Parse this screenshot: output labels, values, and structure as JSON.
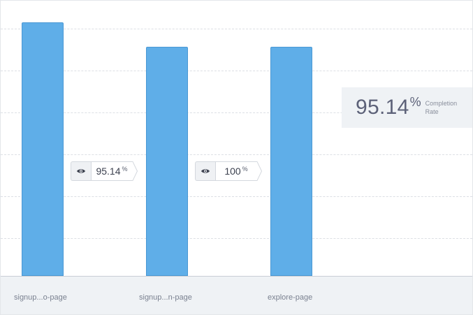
{
  "chart_data": {
    "type": "bar",
    "categories": [
      "signup...o-page",
      "signup...n-page",
      "explore-page"
    ],
    "values": [
      100,
      95.14,
      95.14
    ],
    "ylim": [
      0,
      100
    ],
    "grid": true,
    "conversion_rates": [
      {
        "value": "95.14",
        "unit": "%"
      },
      {
        "value": "100",
        "unit": "%"
      }
    ],
    "summary": {
      "value": "95.14",
      "unit": "%",
      "label": "Completion Rate"
    }
  },
  "icons": {
    "conversion": "eye-icon"
  },
  "colors": {
    "bar": "#5faee8",
    "bar_border": "#4a98d4",
    "axis_bg": "#eff2f5"
  }
}
